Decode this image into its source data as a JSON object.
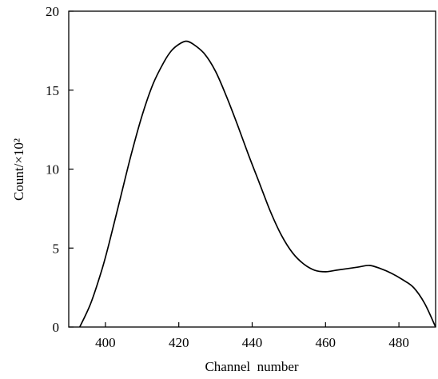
{
  "chart_data": {
    "type": "line",
    "title": "",
    "xlabel": "Channel  number",
    "ylabel": "Count/×10²",
    "xlim": [
      390,
      490
    ],
    "ylim": [
      0,
      20
    ],
    "x_ticks": [
      400,
      420,
      440,
      460,
      480
    ],
    "y_ticks": [
      0,
      5,
      10,
      15,
      20
    ],
    "x_tick_labels": [
      "400",
      "420",
      "440",
      "460",
      "480"
    ],
    "y_tick_labels": [
      "0",
      "5",
      "10",
      "15",
      "20"
    ],
    "grid": false,
    "legend": "none",
    "series": [
      {
        "color": "#000000",
        "x": [
          393,
          396,
          399,
          401,
          404,
          407,
          410,
          413,
          416,
          418,
          420,
          422,
          424,
          427,
          430,
          433,
          436,
          439,
          442,
          445,
          448,
          451,
          454,
          457,
          460,
          463,
          466,
          469,
          472,
          475,
          478,
          481,
          484,
          487,
          490
        ],
        "y": [
          0.0,
          1.5,
          3.6,
          5.3,
          8.1,
          10.9,
          13.4,
          15.4,
          16.8,
          17.5,
          17.9,
          18.1,
          17.9,
          17.3,
          16.2,
          14.6,
          12.8,
          10.9,
          9.1,
          7.3,
          5.8,
          4.7,
          4.0,
          3.6,
          3.5,
          3.6,
          3.7,
          3.8,
          3.9,
          3.7,
          3.4,
          3.0,
          2.5,
          1.5,
          0.0
        ]
      }
    ]
  }
}
